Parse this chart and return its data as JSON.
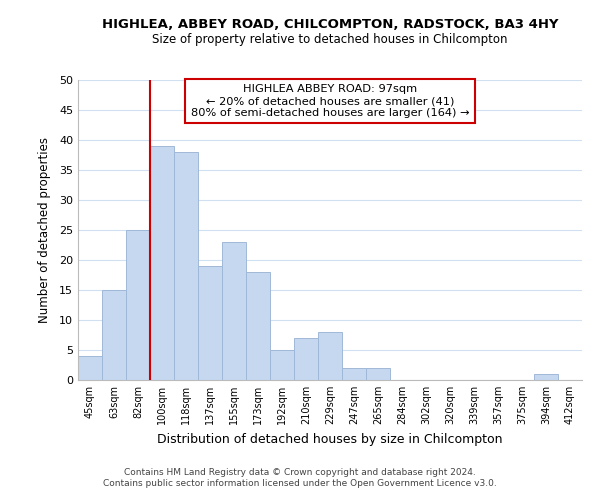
{
  "title": "HIGHLEA, ABBEY ROAD, CHILCOMPTON, RADSTOCK, BA3 4HY",
  "subtitle": "Size of property relative to detached houses in Chilcompton",
  "xlabel": "Distribution of detached houses by size in Chilcompton",
  "ylabel": "Number of detached properties",
  "bar_labels": [
    "45sqm",
    "63sqm",
    "82sqm",
    "100sqm",
    "118sqm",
    "137sqm",
    "155sqm",
    "173sqm",
    "192sqm",
    "210sqm",
    "229sqm",
    "247sqm",
    "265sqm",
    "284sqm",
    "302sqm",
    "320sqm",
    "339sqm",
    "357sqm",
    "375sqm",
    "394sqm",
    "412sqm"
  ],
  "bar_values": [
    4,
    15,
    25,
    39,
    38,
    19,
    23,
    18,
    5,
    7,
    8,
    2,
    2,
    0,
    0,
    0,
    0,
    0,
    0,
    1,
    0
  ],
  "bar_color": "#c5d8f0",
  "bar_edgecolor": "#a0b8d8",
  "vline_index": 3,
  "vline_color": "#cc0000",
  "ylim": [
    0,
    50
  ],
  "yticks": [
    0,
    5,
    10,
    15,
    20,
    25,
    30,
    35,
    40,
    45,
    50
  ],
  "annotation_title": "HIGHLEA ABBEY ROAD: 97sqm",
  "annotation_line1": "← 20% of detached houses are smaller (41)",
  "annotation_line2": "80% of semi-detached houses are larger (164) →",
  "annotation_box_color": "#ffffff",
  "annotation_box_edgecolor": "#cc0000",
  "footer1": "Contains HM Land Registry data © Crown copyright and database right 2024.",
  "footer2": "Contains public sector information licensed under the Open Government Licence v3.0.",
  "background_color": "#ffffff",
  "grid_color": "#d0e0f0"
}
